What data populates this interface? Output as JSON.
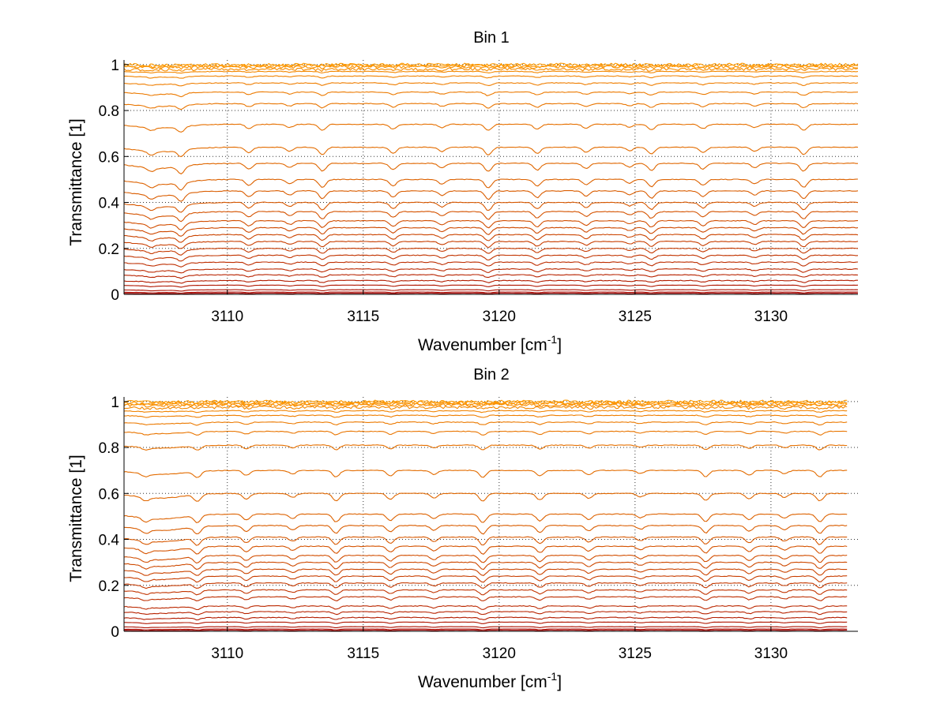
{
  "chart_data": [
    {
      "type": "line",
      "title": "Bin 1",
      "xlabel": "Wavenumber [cm",
      "xlabel_sup": "-1",
      "xlabel_end": "]",
      "ylabel": "Transmittance [1]",
      "xlim": [
        3106.2,
        3133.2
      ],
      "ylim": [
        0,
        1.02
      ],
      "xticks": [
        3110,
        3115,
        3120,
        3125,
        3130
      ],
      "xtick_labels": [
        "3110",
        "3115",
        "3120",
        "3125",
        "3130"
      ],
      "yticks": [
        0,
        0.2,
        0.4,
        0.6,
        0.8,
        1
      ],
      "ytick_labels": [
        "0",
        "0.2",
        "0.4",
        "0.6",
        "0.8",
        "1"
      ],
      "grid": true,
      "series_levels": [
        0.005,
        0.01,
        0.02,
        0.04,
        0.06,
        0.085,
        0.11,
        0.14,
        0.17,
        0.2,
        0.23,
        0.26,
        0.29,
        0.32,
        0.36,
        0.4,
        0.45,
        0.5,
        0.57,
        0.64,
        0.74,
        0.83,
        0.88,
        0.92,
        0.95,
        0.97,
        0.98,
        0.99,
        0.995,
        1.0
      ],
      "absorption_lines": [
        3107.2,
        3108.3,
        3110.8,
        3112.3,
        3113.5,
        3116.1,
        3117.9,
        3119.6,
        3121.4,
        3123.2,
        3124.8,
        3125.6,
        3127.5,
        3129.4,
        3131.2
      ],
      "x_end": 3133.2,
      "color_dark": "#a30000",
      "color_light": "#ff9a00"
    },
    {
      "type": "line",
      "title": "Bin 2",
      "xlabel": "Wavenumber [cm",
      "xlabel_sup": "-1",
      "xlabel_end": "]",
      "ylabel": "Transmittance [1]",
      "xlim": [
        3106.2,
        3133.2
      ],
      "ylim": [
        0,
        1.02
      ],
      "xticks": [
        3110,
        3115,
        3120,
        3125,
        3130
      ],
      "xtick_labels": [
        "3110",
        "3115",
        "3120",
        "3125",
        "3130"
      ],
      "yticks": [
        0,
        0.2,
        0.4,
        0.6,
        0.8,
        1
      ],
      "ytick_labels": [
        "0",
        "0.2",
        "0.4",
        "0.6",
        "0.8",
        "1"
      ],
      "grid": true,
      "series_levels": [
        0.005,
        0.01,
        0.02,
        0.04,
        0.06,
        0.085,
        0.11,
        0.15,
        0.18,
        0.21,
        0.24,
        0.27,
        0.3,
        0.33,
        0.37,
        0.41,
        0.46,
        0.51,
        0.6,
        0.7,
        0.81,
        0.87,
        0.91,
        0.94,
        0.96,
        0.975,
        0.985,
        0.99,
        0.995,
        1.0
      ],
      "absorption_lines": [
        3107.0,
        3108.9,
        3110.7,
        3112.4,
        3114.0,
        3116.0,
        3117.6,
        3119.4,
        3121.5,
        3123.3,
        3125.2,
        3127.6,
        3129.2,
        3130.5,
        3131.8
      ],
      "x_end": 3132.8,
      "color_dark": "#a30000",
      "color_light": "#ff9a00"
    }
  ]
}
